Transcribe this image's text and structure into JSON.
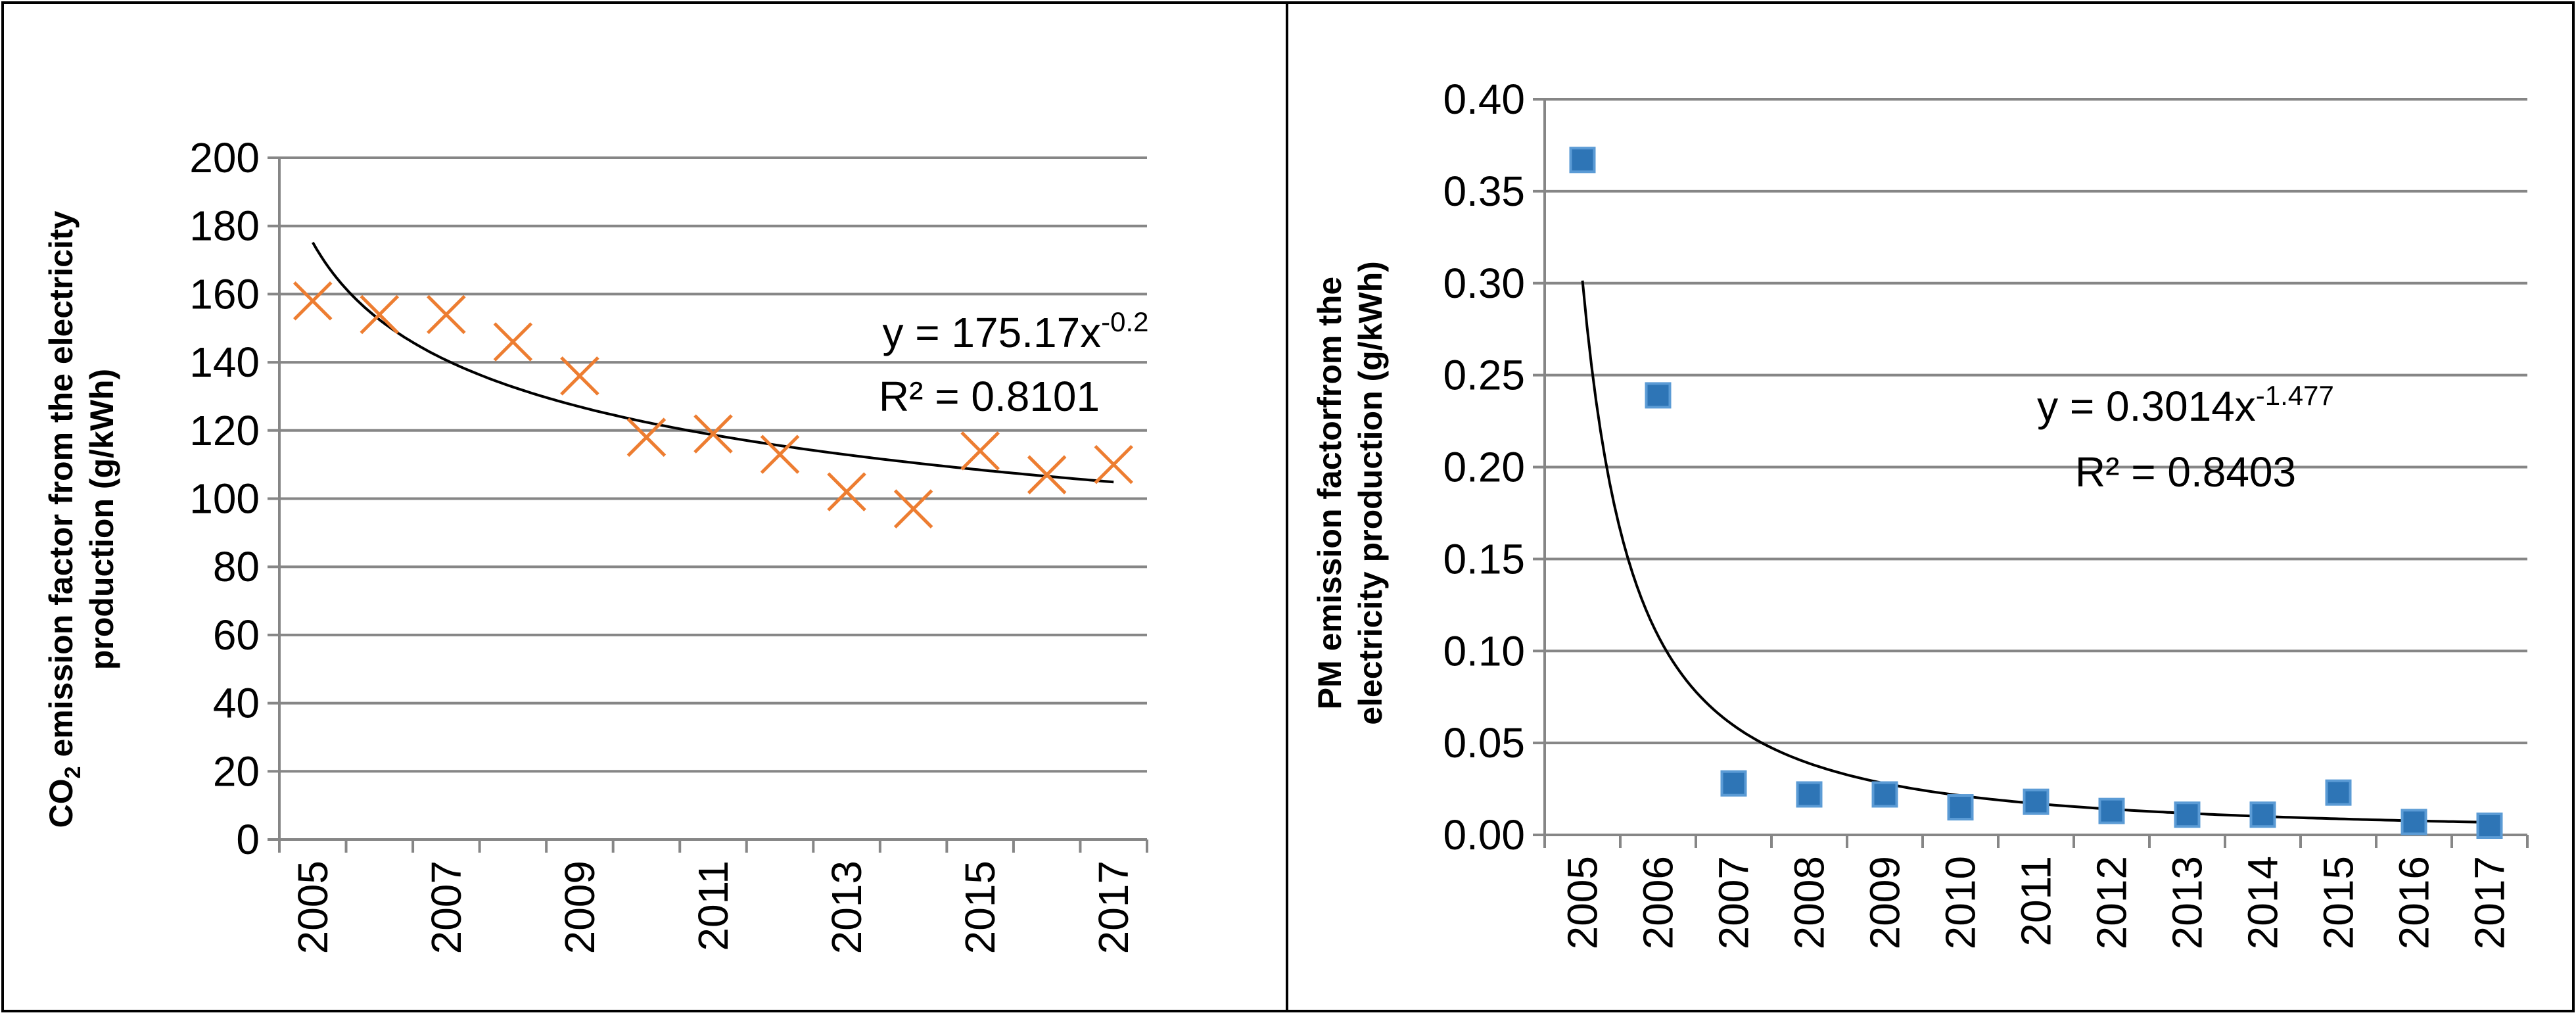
{
  "colors": {
    "border": "#000000",
    "grid": "#868686",
    "co2_marker": "#ED7D31",
    "pm_marker": "#2E75B6",
    "pm_marker_border": "#5B9BD5",
    "trendline": "#000000"
  },
  "chart_data": [
    {
      "type": "scatter",
      "title": "",
      "xlabel": "",
      "ylabel": "CO2 emission factor from the electricity production (g/kWh)",
      "ylabel_parts": {
        "line1_prefix": "CO",
        "line1_sub": "2",
        "line1_suffix": " emission factor from the electricity",
        "line2": "production (g/kWh)"
      },
      "x": [
        2005,
        2006,
        2007,
        2008,
        2009,
        2010,
        2011,
        2012,
        2013,
        2014,
        2015,
        2016,
        2017
      ],
      "x_tick_labels": [
        "2005",
        "2007",
        "2009",
        "2011",
        "2013",
        "2015",
        "2017"
      ],
      "y_tick_labels": [
        "0",
        "20",
        "40",
        "60",
        "80",
        "100",
        "120",
        "140",
        "160",
        "180",
        "200"
      ],
      "ylim": [
        0,
        200
      ],
      "grid": true,
      "marker": "x",
      "series": [
        {
          "name": "CO2 emission factor",
          "values": [
            158,
            154,
            154,
            146,
            136,
            118,
            119,
            113,
            102,
            97,
            114,
            107,
            110
          ]
        }
      ],
      "trendline": {
        "type": "power",
        "a": 175.17,
        "b": -0.2
      },
      "equation": {
        "prefix": "y = 175.17x",
        "exponent": "-0.2",
        "r2": "R² = 0.8101"
      }
    },
    {
      "type": "scatter",
      "title": "",
      "xlabel": "",
      "ylabel": "PM emission factorfrom the electricity production (g/kWh)",
      "ylabel_parts": {
        "line1": "PM emission factorfrom the",
        "line2": "electricity production (g/kWh)"
      },
      "x": [
        2005,
        2006,
        2007,
        2008,
        2009,
        2010,
        2011,
        2012,
        2013,
        2014,
        2015,
        2016,
        2017
      ],
      "x_tick_labels": [
        "2005",
        "2006",
        "2007",
        "2008",
        "2009",
        "2010",
        "2011",
        "2012",
        "2013",
        "2014",
        "2015",
        "2016",
        "2017"
      ],
      "y_tick_labels": [
        "0.00",
        "0.05",
        "0.10",
        "0.15",
        "0.20",
        "0.25",
        "0.30",
        "0.35",
        "0.40"
      ],
      "ylim": [
        0,
        0.4
      ],
      "grid": true,
      "marker": "square",
      "series": [
        {
          "name": "PM emission factor",
          "values": [
            0.367,
            0.239,
            0.028,
            0.022,
            0.022,
            0.015,
            0.018,
            0.013,
            0.011,
            0.011,
            0.023,
            0.007,
            0.005
          ]
        }
      ],
      "trendline": {
        "type": "power",
        "a": 0.3014,
        "b": -1.477
      },
      "equation": {
        "prefix": "y = 0.3014x",
        "exponent": "-1.477",
        "r2": "R² = 0.8403"
      }
    }
  ]
}
